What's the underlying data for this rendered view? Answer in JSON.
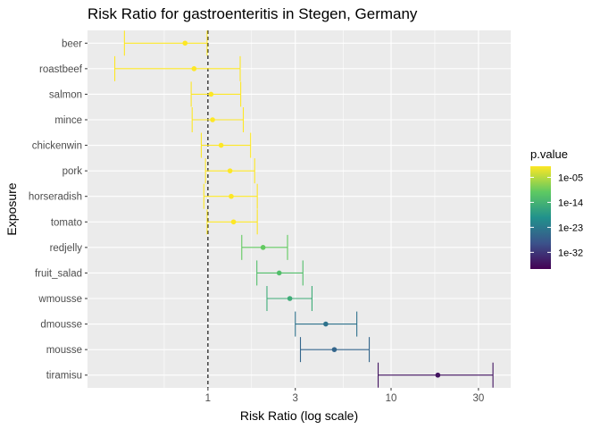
{
  "chart_data": {
    "type": "forest",
    "title": "Risk Ratio for gastroenteritis in Stegen, Germany",
    "xlabel": "Risk Ratio (log scale)",
    "ylabel": "Exposure",
    "x_scale": "log10",
    "xlim": [
      0.22,
      45
    ],
    "x_ticks": [
      1,
      3,
      10,
      30
    ],
    "x_tick_labels": [
      "1",
      "3",
      "10",
      "30"
    ],
    "reference_line": 1,
    "grid": true,
    "legend": {
      "title": "p.value",
      "placement": "right",
      "type": "colorbar",
      "scale": "log10",
      "range": [
        1e-38,
        0.1
      ],
      "ticks": [
        1e-05,
        1e-14,
        1e-23,
        1e-32
      ],
      "tick_labels": [
        "1e-05",
        "1e-14",
        "1e-23",
        "1e-32"
      ],
      "colors": [
        "#440154",
        "#3b528b",
        "#21918c",
        "#5ec962",
        "#fde725"
      ]
    },
    "categories": [
      "beer",
      "roastbeef",
      "salmon",
      "mince",
      "chickenwin",
      "pork",
      "horseradish",
      "tomato",
      "redjelly",
      "fruit_salad",
      "wmousse",
      "dmousse",
      "mousse",
      "tiramisu"
    ],
    "series": [
      {
        "estimate": [
          0.75,
          0.84,
          1.04,
          1.06,
          1.18,
          1.32,
          1.34,
          1.38,
          2.0,
          2.45,
          2.8,
          4.4,
          4.9,
          18.0
        ],
        "ci_low": [
          0.35,
          0.31,
          0.81,
          0.82,
          0.92,
          0.97,
          0.95,
          0.99,
          1.53,
          1.85,
          2.1,
          3.0,
          3.2,
          8.5
        ],
        "ci_high": [
          0.99,
          1.5,
          1.51,
          1.56,
          1.71,
          1.8,
          1.86,
          1.86,
          2.72,
          3.3,
          3.7,
          6.5,
          7.6,
          36.0
        ],
        "p_value": [
          0.1,
          0.1,
          0.5,
          0.5,
          0.1,
          0.1,
          0.1,
          0.1,
          1e-10,
          1e-12,
          1e-15,
          1e-24,
          1e-26,
          1e-36
        ]
      }
    ]
  }
}
